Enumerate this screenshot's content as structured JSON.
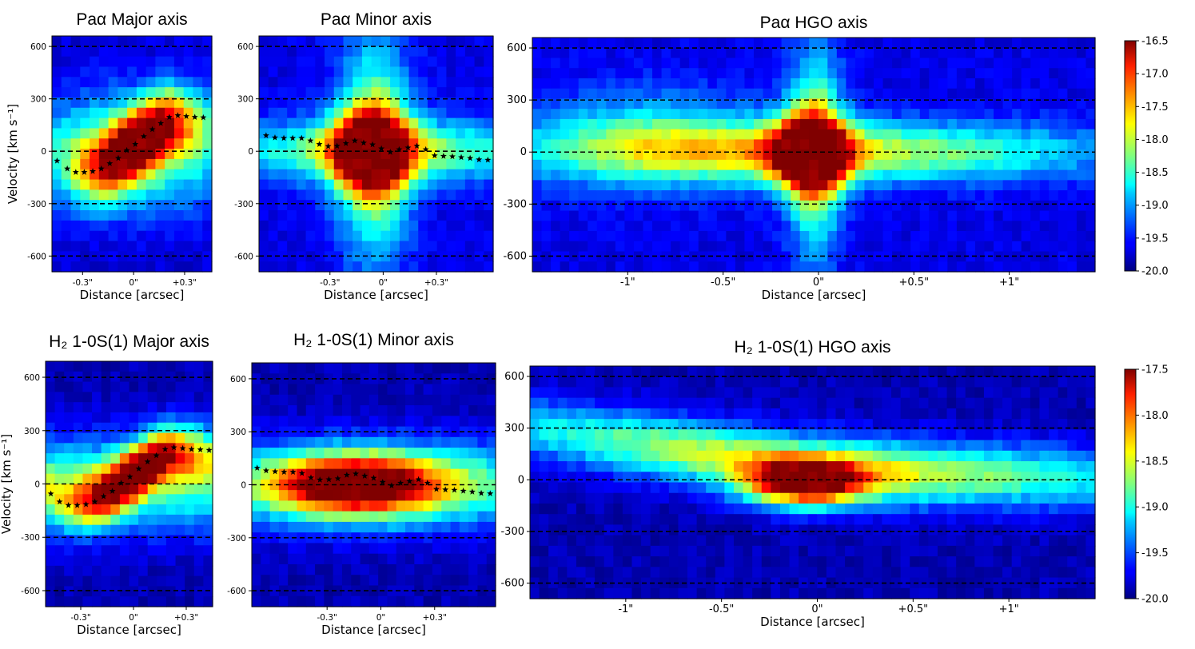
{
  "chart_data": [
    {
      "type": "heatmap",
      "title": "Paα Major axis",
      "xlabel": "Distance [arcsec]",
      "ylabel": "Velocity [km s⁻¹]",
      "xticks": [
        "-0.3\"",
        "0\"",
        "+0.3\""
      ],
      "xtick_values": [
        -0.3,
        0,
        0.3
      ],
      "xlim": [
        -0.48,
        0.46
      ],
      "yticks": [
        600,
        300,
        0,
        -300,
        -600
      ],
      "ylim": [
        -690,
        660
      ],
      "hlines": [
        600,
        300,
        0,
        -300,
        -600
      ],
      "intensity_range": [
        -20,
        -16.5
      ],
      "stars": {
        "x": [
          -0.45,
          -0.39,
          -0.34,
          -0.29,
          -0.24,
          -0.19,
          -0.14,
          -0.09,
          -0.04,
          0.01,
          0.06,
          0.11,
          0.16,
          0.21,
          0.26,
          0.31,
          0.36,
          0.41
        ],
        "y": [
          -55,
          -100,
          -120,
          -120,
          -115,
          -100,
          -70,
          -40,
          5,
          40,
          85,
          125,
          160,
          195,
          205,
          200,
          195,
          193
        ]
      }
    },
    {
      "type": "heatmap",
      "title": "Paα Minor axis",
      "xlabel": "Distance [arcsec]",
      "ylabel": "",
      "xticks": [
        "-0.3\"",
        "0\"",
        "+0.3\""
      ],
      "xtick_values": [
        -0.3,
        0,
        0.3
      ],
      "xlim": [
        -0.7,
        0.62
      ],
      "yticks": [
        600,
        300,
        0,
        -300,
        -600
      ],
      "ylim": [
        -690,
        660
      ],
      "hlines": [
        600,
        300,
        0,
        -300,
        -600
      ],
      "intensity_range": [
        -20,
        -16.5
      ],
      "stars": {
        "x": [
          -0.66,
          -0.61,
          -0.56,
          -0.51,
          -0.46,
          -0.41,
          -0.36,
          -0.31,
          -0.26,
          -0.21,
          -0.16,
          -0.11,
          -0.06,
          -0.01,
          0.04,
          0.09,
          0.14,
          0.19,
          0.24,
          0.29,
          0.34,
          0.39,
          0.44,
          0.49,
          0.54,
          0.59
        ],
        "y": [
          90,
          78,
          75,
          75,
          75,
          60,
          40,
          28,
          30,
          45,
          60,
          48,
          38,
          15,
          -5,
          10,
          20,
          30,
          10,
          -25,
          -28,
          -30,
          -35,
          -40,
          -48,
          -50
        ]
      }
    },
    {
      "type": "heatmap",
      "title": "Paα HGO axis",
      "xlabel": "Distance [arcsec]",
      "ylabel": "",
      "xticks": [
        "-1\"",
        "-0.5\"",
        "0\"",
        "+0.5\"",
        "+1\""
      ],
      "xtick_values": [
        -1,
        -0.5,
        0,
        0.5,
        1
      ],
      "xlim": [
        -1.5,
        1.45
      ],
      "yticks": [
        600,
        300,
        0,
        -300,
        -600
      ],
      "ylim": [
        -690,
        660
      ],
      "hlines": [
        600,
        300,
        0,
        -300,
        -600
      ],
      "intensity_range": [
        -20,
        -16.5
      ],
      "stars": {
        "x": [],
        "y": []
      }
    },
    {
      "type": "heatmap",
      "title": "H₂ 1-0S(1) Major axis",
      "xlabel": "Distance [arcsec]",
      "ylabel": "Velocity [km s⁻¹]",
      "xticks": [
        "-0.3\"",
        "0\"",
        "+0.3\""
      ],
      "xtick_values": [
        -0.3,
        0,
        0.3
      ],
      "xlim": [
        -0.5,
        0.45
      ],
      "yticks": [
        600,
        300,
        0,
        -300,
        -600
      ],
      "ylim": [
        -690,
        690
      ],
      "hlines": [
        600,
        300,
        0,
        -300,
        -600
      ],
      "intensity_range": [
        -20,
        -17.5
      ],
      "stars": {
        "x": [
          -0.47,
          -0.42,
          -0.37,
          -0.32,
          -0.27,
          -0.22,
          -0.17,
          -0.12,
          -0.07,
          -0.02,
          0.03,
          0.08,
          0.13,
          0.18,
          0.23,
          0.28,
          0.33,
          0.38,
          0.43
        ],
        "y": [
          -55,
          -100,
          -120,
          -120,
          -115,
          -100,
          -70,
          -40,
          5,
          40,
          85,
          125,
          160,
          195,
          205,
          200,
          195,
          193,
          190
        ]
      }
    },
    {
      "type": "heatmap",
      "title": "H₂ 1-0S(1) Minor axis",
      "xlabel": "Distance [arcsec]",
      "ylabel": "",
      "xticks": [
        "-0.3\"",
        "0\"",
        "+0.3\""
      ],
      "xtick_values": [
        -0.3,
        0,
        0.3
      ],
      "xlim": [
        -0.72,
        0.64
      ],
      "yticks": [
        600,
        300,
        0,
        -300,
        -600
      ],
      "ylim": [
        -690,
        690
      ],
      "hlines": [
        600,
        300,
        0,
        -300,
        -600
      ],
      "intensity_range": [
        -20,
        -17.5
      ],
      "stars": {
        "x": [
          -0.69,
          -0.64,
          -0.59,
          -0.54,
          -0.49,
          -0.44,
          -0.39,
          -0.34,
          -0.29,
          -0.24,
          -0.19,
          -0.14,
          -0.09,
          -0.04,
          0.01,
          0.06,
          0.11,
          0.16,
          0.21,
          0.26,
          0.31,
          0.36,
          0.41,
          0.46,
          0.51,
          0.56,
          0.61
        ],
        "y": [
          95,
          80,
          75,
          72,
          72,
          65,
          40,
          28,
          30,
          35,
          55,
          62,
          50,
          38,
          15,
          -5,
          10,
          20,
          30,
          10,
          -25,
          -28,
          -30,
          -35,
          -40,
          -48,
          -50
        ]
      }
    },
    {
      "type": "heatmap",
      "title": "H₂ 1-0S(1) HGO axis",
      "xlabel": "Distance [arcsec]",
      "ylabel": "",
      "xticks": [
        "-1\"",
        "-0.5\"",
        "0\"",
        "+0.5\"",
        "+1\""
      ],
      "xtick_values": [
        -1,
        -0.5,
        0,
        0.5,
        1
      ],
      "xlim": [
        -1.5,
        1.45
      ],
      "yticks": [
        600,
        300,
        0,
        -300,
        -600
      ],
      "ylim": [
        -690,
        660
      ],
      "hlines": [
        600,
        300,
        0,
        -300,
        -600
      ],
      "intensity_range": [
        -20,
        -17.5
      ],
      "stars": {
        "x": [],
        "y": []
      }
    }
  ],
  "colorbars": [
    {
      "ticks": [
        "-16.5",
        "-17.0",
        "-17.5",
        "-18.0",
        "-18.5",
        "-19.0",
        "-19.5",
        "-20.0"
      ],
      "values": [
        -16.5,
        -17,
        -17.5,
        -18,
        -18.5,
        -19,
        -19.5,
        -20
      ]
    },
    {
      "ticks": [
        "-17.5",
        "-18.0",
        "-18.5",
        "-19.0",
        "-19.5",
        "-20.0"
      ],
      "values": [
        -17.5,
        -18,
        -18.5,
        -19,
        -19.5,
        -20
      ]
    }
  ]
}
